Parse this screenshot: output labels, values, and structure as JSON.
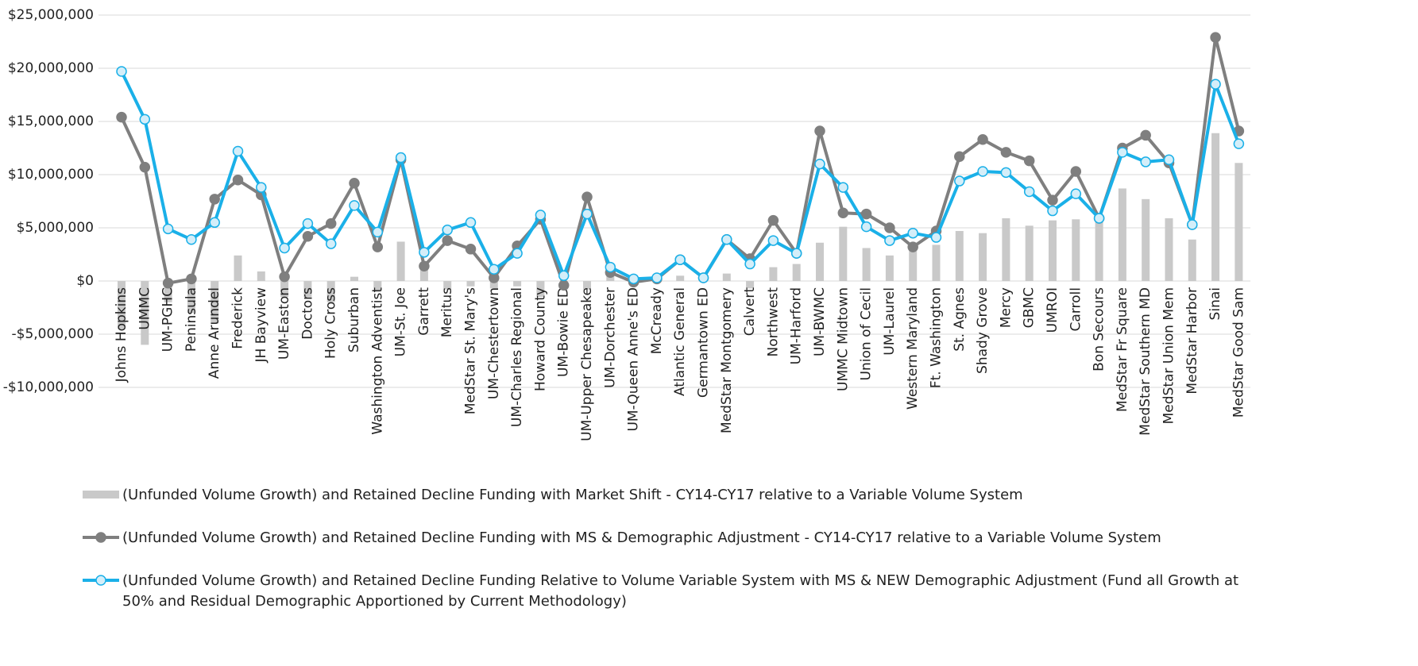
{
  "chart_data": {
    "type": "bar",
    "categories": [
      "Johns Hopkins",
      "UMMC",
      "UM-PGHC",
      "Peninsula",
      "Anne Arundel",
      "Frederick",
      "JH Bayview",
      "UM-Easton",
      "Doctors",
      "Holy Cross",
      "Suburban",
      "Washington Adventist",
      "UM-St. Joe",
      "Garrett",
      "Meritus",
      "MedStar St. Mary's",
      "UM-Chestertown",
      "UM-Charles Regional",
      "Howard County",
      "UM-Bowie ED",
      "UM-Upper Chesapeake",
      "UM-Dorchester",
      "UM-Queen Anne's ED",
      "McCready",
      "Atlantic General",
      "Germantown ED",
      "MedStar Montgomery",
      "Calvert",
      "Northwest",
      "UM-Harford",
      "UM-BWMC",
      "UMMC Midtown",
      "Union of Cecil",
      "UM-Laurel",
      "Western Maryland",
      "Ft. Washington",
      "St. Agnes",
      "Shady Grove",
      "Mercy",
      "GBMC",
      "UMROI",
      "Carroll",
      "Bon Secours",
      "MedStar Fr Square",
      "MedStar Southern MD",
      "MedStar Union Mem",
      "MedStar Harbor",
      "Sinai",
      "MedStar Good Sam"
    ],
    "series": [
      {
        "name": "(Unfunded Volume Growth) and Retained Decline Funding with Market Shift - CY14-CY17 relative to a Variable Volume System",
        "type": "bar",
        "color": "#c9c9c9",
        "values": [
          -4500000,
          -6000000,
          -2000000,
          -3000000,
          -4000000,
          2400000,
          900000,
          -1500000,
          -1500000,
          -2000000,
          400000,
          -1000000,
          3700000,
          1500000,
          -800000,
          -500000,
          -700000,
          -500000,
          -1500000,
          -300000,
          -800000,
          900000,
          100000,
          100000,
          500000,
          100000,
          700000,
          -700000,
          1300000,
          1600000,
          3600000,
          5100000,
          3100000,
          2400000,
          2900000,
          3400000,
          4700000,
          4500000,
          5900000,
          5200000,
          5700000,
          5800000,
          5600000,
          8700000,
          7700000,
          5900000,
          3900000,
          13900000,
          11100000
        ]
      },
      {
        "name": "(Unfunded Volume Growth) and Retained Decline Funding with MS & Demographic Adjustment - CY14-CY17 relative to a Variable Volume System",
        "type": "line",
        "color": "#7f7f7f",
        "marker_fill": "#7f7f7f",
        "values": [
          15400000,
          10700000,
          -200000,
          200000,
          7700000,
          9500000,
          8100000,
          400000,
          4200000,
          5400000,
          9200000,
          3200000,
          11400000,
          1400000,
          3800000,
          3000000,
          300000,
          3300000,
          5800000,
          -400000,
          7900000,
          800000,
          -100000,
          200000,
          2000000,
          300000,
          3900000,
          2100000,
          5700000,
          2600000,
          14100000,
          6400000,
          6300000,
          5000000,
          3200000,
          4700000,
          11700000,
          13300000,
          12100000,
          11300000,
          7600000,
          10300000,
          5900000,
          12500000,
          13700000,
          11100000,
          5300000,
          22900000,
          14100000
        ]
      },
      {
        "name": "(Unfunded Volume Growth) and Retained Decline Funding Relative to Volume Variable System with MS & NEW Demographic Adjustment (Fund all Growth at 50% and Residual Demographic Apportioned by Current Methodology)",
        "type": "line",
        "color": "#1ab0e8",
        "marker_fill": "#d4eef9",
        "values": [
          19700000,
          15200000,
          4900000,
          3900000,
          5500000,
          12200000,
          8800000,
          3100000,
          5400000,
          3500000,
          7100000,
          4600000,
          11600000,
          2700000,
          4800000,
          5500000,
          1100000,
          2600000,
          6200000,
          500000,
          6300000,
          1300000,
          200000,
          300000,
          2000000,
          300000,
          3900000,
          1600000,
          3800000,
          2600000,
          11000000,
          8800000,
          5100000,
          3800000,
          4500000,
          4100000,
          9400000,
          10300000,
          10200000,
          8400000,
          6600000,
          8200000,
          5900000,
          12100000,
          11200000,
          11400000,
          5300000,
          18500000,
          12900000
        ]
      }
    ],
    "ylim": [
      -10000000,
      25000000
    ],
    "yticks": [
      {
        "value": -10000000,
        "label": "-$10,000,000"
      },
      {
        "value": -5000000,
        "label": "-$5,000,000"
      },
      {
        "value": 0,
        "label": "$0"
      },
      {
        "value": 5000000,
        "label": "$5,000,000"
      },
      {
        "value": 10000000,
        "label": "$10,000,000"
      },
      {
        "value": 15000000,
        "label": "$15,000,000"
      },
      {
        "value": 20000000,
        "label": "$20,000,000"
      },
      {
        "value": 25000000,
        "label": "$25,000,000"
      }
    ],
    "grid": true
  }
}
